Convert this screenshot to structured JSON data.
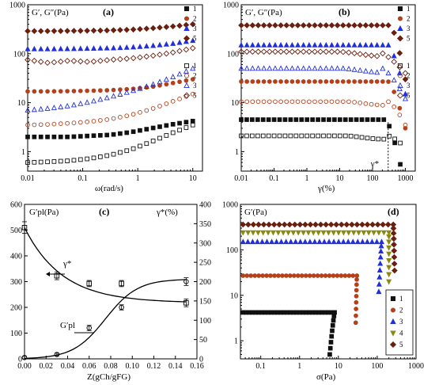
{
  "colors": {
    "s1": "#111111",
    "s2": "#b5401a",
    "s3": "#2230d8",
    "s4": "#8a8a12",
    "s5": "#6a1f10",
    "fit": "#000000"
  },
  "chart_data": [
    {
      "id": "a",
      "type": "scatter",
      "panel_label": "(a)",
      "ylabel": "G′, G″(Pa)",
      "xlabel": "ω(rad/s)",
      "xscale": "log",
      "yscale": "log",
      "xlim": [
        0.01,
        15
      ],
      "ylim": [
        0.4,
        1000
      ],
      "xticks": [
        0.01,
        0.1,
        1,
        10
      ],
      "xticklabels": [
        "0.01",
        "0.1",
        "1",
        "10"
      ],
      "yticks": [
        1,
        10,
        100,
        1000
      ],
      "yticklabels": [
        "1",
        "10",
        "100",
        "1000"
      ],
      "legend_position": "right",
      "legend_groups": [
        {
          "labels": [
            "1",
            "2",
            "3",
            "5"
          ]
        },
        {
          "labels": [
            "1",
            "2",
            "3",
            "5"
          ]
        }
      ],
      "series": [
        {
          "name": "1",
          "type": "G′",
          "marker": "square",
          "filled": true,
          "color": "#111111",
          "x_range": [
            0.01,
            10
          ],
          "y_values": [
            2.0,
            2.0,
            2.0,
            2.1,
            2.2,
            2.5,
            3.0,
            3.6,
            4.2
          ]
        },
        {
          "name": "2",
          "type": "G′",
          "marker": "circle",
          "filled": true,
          "color": "#b5401a",
          "x_range": [
            0.01,
            10
          ],
          "y_values": [
            17,
            17,
            17.2,
            17.5,
            18,
            19,
            21,
            25,
            30
          ]
        },
        {
          "name": "3",
          "type": "G′",
          "marker": "triangle",
          "filled": true,
          "color": "#2230d8",
          "x_range": [
            0.01,
            10
          ],
          "y_values": [
            125,
            125,
            126,
            128,
            130,
            135,
            145,
            160,
            185
          ]
        },
        {
          "name": "5",
          "type": "G′",
          "marker": "diamond",
          "filled": true,
          "color": "#6a1f10",
          "x_range": [
            0.01,
            10
          ],
          "y_values": [
            290,
            290,
            292,
            295,
            300,
            310,
            330,
            360,
            400
          ]
        },
        {
          "name": "1",
          "type": "G″",
          "marker": "square",
          "filled": false,
          "color": "#111111",
          "x_range": [
            0.01,
            10
          ],
          "y_values": [
            0.6,
            0.62,
            0.65,
            0.72,
            0.85,
            1.1,
            1.6,
            2.4,
            3.5
          ]
        },
        {
          "name": "2",
          "type": "G″",
          "marker": "circle",
          "filled": false,
          "color": "#b5401a",
          "x_range": [
            0.01,
            10
          ],
          "y_values": [
            3.5,
            3.6,
            3.8,
            4.1,
            4.6,
            5.6,
            7.4,
            10.5,
            15
          ]
        },
        {
          "name": "3",
          "type": "G″",
          "marker": "triangle",
          "filled": false,
          "color": "#2230d8",
          "x_range": [
            0.01,
            10
          ],
          "y_values": [
            7,
            7.6,
            8.6,
            10.3,
            13,
            17,
            23,
            33,
            50
          ]
        },
        {
          "name": "5",
          "type": "G″",
          "marker": "diamond",
          "filled": false,
          "color": "#6a1f10",
          "x_range": [
            0.01,
            10
          ],
          "y_values": [
            75,
            65,
            72,
            68,
            75,
            80,
            90,
            105,
            130
          ]
        }
      ]
    },
    {
      "id": "b",
      "type": "scatter",
      "panel_label": "(b)",
      "ylabel": "G′, G″(Pa)",
      "xlabel": "γ(%)",
      "xscale": "log",
      "yscale": "log",
      "xlim": [
        0.01,
        2000
      ],
      "ylim": [
        0.4,
        1000
      ],
      "xticks": [
        0.01,
        0.1,
        1,
        10,
        100,
        1000
      ],
      "xticklabels": [
        "0.01",
        "0.1",
        "1",
        "10",
        "100",
        "1000"
      ],
      "yticks": [
        1,
        10,
        100,
        1000
      ],
      "yticklabels": [
        "1",
        "10",
        "100",
        "1000"
      ],
      "annotation": "γ*",
      "annotation_x": 300,
      "legend_position": "right",
      "legend_groups": [
        {
          "labels": [
            "1",
            "2",
            "3",
            "5"
          ]
        },
        {
          "labels": [
            "1",
            "2",
            "3",
            "5"
          ]
        }
      ],
      "series": [
        {
          "name": "1",
          "type": "G′",
          "color": "#111111",
          "marker": "square",
          "filled": true,
          "plateau": 4.5,
          "break_at": 250,
          "end_x": 700,
          "end_y": 0.55
        },
        {
          "name": "2",
          "type": "G′",
          "color": "#b5401a",
          "marker": "circle",
          "filled": true,
          "plateau": 27,
          "break_at": 300,
          "end_x": 1000,
          "end_y": 3
        },
        {
          "name": "3",
          "type": "G′",
          "color": "#2230d8",
          "marker": "triangle",
          "filled": true,
          "plateau": 150,
          "break_at": 300,
          "end_x": 1000,
          "end_y": 15
        },
        {
          "name": "5",
          "type": "G′",
          "color": "#6a1f10",
          "marker": "diamond",
          "filled": true,
          "plateau": 380,
          "break_at": 350,
          "end_x": 1000,
          "end_y": 30
        },
        {
          "name": "1",
          "type": "G″",
          "color": "#111111",
          "marker": "square",
          "filled": false,
          "plateau": 2.1,
          "break_at": 300,
          "end_x": 700,
          "end_y": 1.5
        },
        {
          "name": "2",
          "type": "G″",
          "color": "#b5401a",
          "marker": "circle",
          "filled": false,
          "plateau": 10.5,
          "break_at": 300,
          "end_x": 1000,
          "end_y": 3.5
        },
        {
          "name": "3",
          "type": "G″",
          "color": "#2230d8",
          "marker": "triangle",
          "filled": false,
          "plateau": 50,
          "break_at": 200,
          "end_x": 1000,
          "end_y": 12
        },
        {
          "name": "5",
          "type": "G″",
          "color": "#6a1f10",
          "marker": "diamond",
          "filled": false,
          "plateau": 110,
          "break_at": 150,
          "end_x": 1000,
          "end_y": 40
        }
      ]
    },
    {
      "id": "c",
      "type": "scatter",
      "panel_label": "(c)",
      "ylabel": "G′pl(Pa)",
      "ylabel_right": "γ*(%)",
      "xlabel": "Z(gCh/gFG)",
      "xlim": [
        0,
        0.16
      ],
      "ylim": [
        0,
        600
      ],
      "ylim_right": [
        0,
        400
      ],
      "xticks": [
        0,
        0.02,
        0.04,
        0.06,
        0.08,
        0.1,
        0.12,
        0.14,
        0.16
      ],
      "xticklabels": [
        "0.00",
        "0.02",
        "0.04",
        "0.06",
        "0.08",
        "0.10",
        "0.12",
        "0.14",
        "0.16"
      ],
      "yticks": [
        0,
        100,
        200,
        300,
        400,
        500,
        600
      ],
      "yticklabels": [
        "0",
        "100",
        "200",
        "300",
        "400",
        "500",
        "600"
      ],
      "yticks_right": [
        0,
        50,
        100,
        150,
        200,
        250,
        300,
        350,
        400
      ],
      "yticklabels_right": [
        "0",
        "50",
        "100",
        "150",
        "200",
        "250",
        "300",
        "350",
        "400"
      ],
      "annotations": [
        "γ*",
        "G′pl"
      ],
      "series": [
        {
          "name": "γ*",
          "axis": "right",
          "marker": "square",
          "x": [
            0.0,
            0.03,
            0.06,
            0.09,
            0.15
          ],
          "y": [
            340,
            215,
            195,
            195,
            145
          ],
          "err": [
            15,
            10,
            8,
            8,
            10
          ]
        },
        {
          "name": "G′pl",
          "axis": "left",
          "marker": "circle",
          "x": [
            0.0,
            0.03,
            0.06,
            0.09,
            0.15
          ],
          "y": [
            5,
            17,
            120,
            200,
            300
          ],
          "err": [
            5,
            5,
            10,
            10,
            15
          ]
        }
      ]
    },
    {
      "id": "d",
      "type": "scatter",
      "panel_label": "(d)",
      "ylabel": "G′(Pa)",
      "xlabel": "σ(Pa)",
      "xscale": "log",
      "yscale": "log",
      "xlim": [
        0.03,
        1000
      ],
      "ylim": [
        0.4,
        1000
      ],
      "xticks": [
        0.1,
        1,
        10,
        100,
        1000
      ],
      "xticklabels": [
        "0.1",
        "1",
        "10",
        "100",
        "1000"
      ],
      "yticks": [
        1,
        10,
        100,
        1000
      ],
      "yticklabels": [
        "1",
        "10",
        "100",
        "1000"
      ],
      "legend_position": "bottom-right",
      "legend_labels": [
        "1",
        "2",
        "3",
        "4",
        "5"
      ],
      "series": [
        {
          "name": "1",
          "color": "#111111",
          "marker": "square",
          "plateau": 4.2,
          "break_at": 8,
          "end_x": 6,
          "end_y": 0.5
        },
        {
          "name": "2",
          "color": "#b5401a",
          "marker": "circle",
          "plateau": 27,
          "break_at": 30,
          "end_x": 28,
          "end_y": 2.5
        },
        {
          "name": "3",
          "color": "#2230d8",
          "marker": "triangle",
          "plateau": 150,
          "break_at": 130,
          "end_x": 110,
          "end_y": 12
        },
        {
          "name": "4",
          "color": "#8a8a12",
          "marker": "triangle-down",
          "plateau": 240,
          "break_at": 200,
          "end_x": 200,
          "end_y": 20
        },
        {
          "name": "5",
          "color": "#6a1f10",
          "marker": "diamond",
          "plateau": 360,
          "break_at": 260,
          "end_x": 280,
          "end_y": 35
        }
      ]
    }
  ]
}
